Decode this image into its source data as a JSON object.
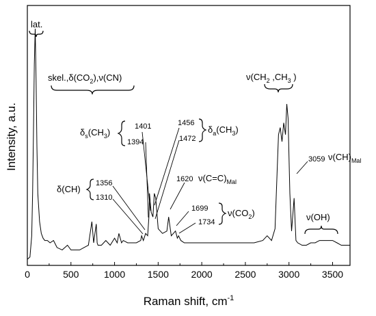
{
  "chart_data": {
    "type": "line",
    "xlabel": "Raman shift, cm",
    "xlabel_sup": "-1",
    "ylabel": "Intensity, a.u.",
    "xlim": [
      0,
      3700
    ],
    "ylim": [
      0,
      1
    ],
    "x_ticks": [
      "0",
      "500",
      "1000",
      "1500",
      "2000",
      "2500",
      "3000",
      "3500"
    ],
    "show_y_ticks": false,
    "grid": false,
    "series": [
      {
        "x": [
          0,
          30,
          50,
          60,
          70,
          80,
          90,
          100,
          110,
          120,
          140,
          160,
          180,
          200,
          230,
          260,
          300,
          340,
          400,
          460,
          500,
          550,
          600,
          650,
          700,
          740,
          760,
          790,
          800,
          810,
          850,
          900,
          950,
          1000,
          1030,
          1050,
          1080,
          1100,
          1150,
          1200,
          1250,
          1300,
          1310,
          1330,
          1356,
          1380,
          1394,
          1401,
          1420,
          1440,
          1456,
          1472,
          1500,
          1550,
          1600,
          1620,
          1650,
          1699,
          1720,
          1734,
          1760,
          1800,
          1900,
          2000,
          2100,
          2200,
          2300,
          2400,
          2500,
          2600,
          2700,
          2750,
          2800,
          2840,
          2870,
          2880,
          2900,
          2920,
          2940,
          2960,
          2975,
          2990,
          3010,
          3030,
          3059,
          3080,
          3100,
          3150,
          3200,
          3250,
          3300,
          3350,
          3400,
          3450,
          3500,
          3550,
          3600,
          3650,
          3700
        ],
        "y": [
          0.02,
          0.03,
          0.12,
          0.3,
          0.55,
          0.85,
          1.0,
          0.78,
          0.5,
          0.3,
          0.18,
          0.13,
          0.11,
          0.1,
          0.1,
          0.09,
          0.1,
          0.07,
          0.06,
          0.08,
          0.06,
          0.06,
          0.06,
          0.07,
          0.08,
          0.18,
          0.09,
          0.17,
          0.09,
          0.08,
          0.08,
          0.1,
          0.08,
          0.11,
          0.09,
          0.13,
          0.09,
          0.1,
          0.09,
          0.09,
          0.09,
          0.1,
          0.12,
          0.1,
          0.13,
          0.12,
          0.2,
          0.3,
          0.22,
          0.2,
          0.3,
          0.28,
          0.15,
          0.13,
          0.14,
          0.2,
          0.12,
          0.14,
          0.11,
          0.12,
          0.1,
          0.09,
          0.09,
          0.09,
          0.09,
          0.09,
          0.09,
          0.09,
          0.09,
          0.09,
          0.1,
          0.12,
          0.1,
          0.15,
          0.45,
          0.55,
          0.58,
          0.52,
          0.6,
          0.55,
          0.68,
          0.62,
          0.3,
          0.14,
          0.28,
          0.1,
          0.09,
          0.08,
          0.08,
          0.09,
          0.09,
          0.1,
          0.1,
          0.1,
          0.1,
          0.09,
          0.08,
          0.08,
          0.08
        ]
      }
    ],
    "annotations": {
      "lat": "lat.",
      "skel_prefix": "skel.,δ(CO",
      "skel_sub": "2",
      "skel_suffix": "),ν(CN)",
      "nu_ch_prefix": "ν(CH",
      "nu_ch_sub1": "2",
      "nu_ch_mid": " ,CH",
      "nu_ch_sub2": "3",
      "nu_ch_suffix": " )",
      "delta_s_prefix": "δ",
      "delta_s_sub": "s",
      "delta_s_mid": "(CH",
      "delta_s_sub2": "3",
      "delta_s_suffix": ")",
      "delta_a_prefix": "δ",
      "delta_a_sub": "a",
      "delta_a_mid": "(CH",
      "delta_a_sub2": "3",
      "delta_a_suffix": ")",
      "delta_ch": "δ(CH)",
      "nu_cc_prefix": "ν(C=C)",
      "nu_cc_sub": "Mal",
      "nu_co2_prefix": "ν(CO",
      "nu_co2_sub": "2",
      "nu_co2_suffix": ")",
      "nu_chmal_prefix": "ν(CH)",
      "nu_chmal_sub": "Mal",
      "nu_oh": "ν(OH)",
      "peak_1401": "1401",
      "peak_1394": "1394",
      "peak_1456": "1456",
      "peak_1472": "1472",
      "peak_1356": "1356",
      "peak_1310": "1310",
      "peak_1620": "1620",
      "peak_1699": "1699",
      "peak_1734": "1734",
      "peak_3059": "3059"
    }
  }
}
